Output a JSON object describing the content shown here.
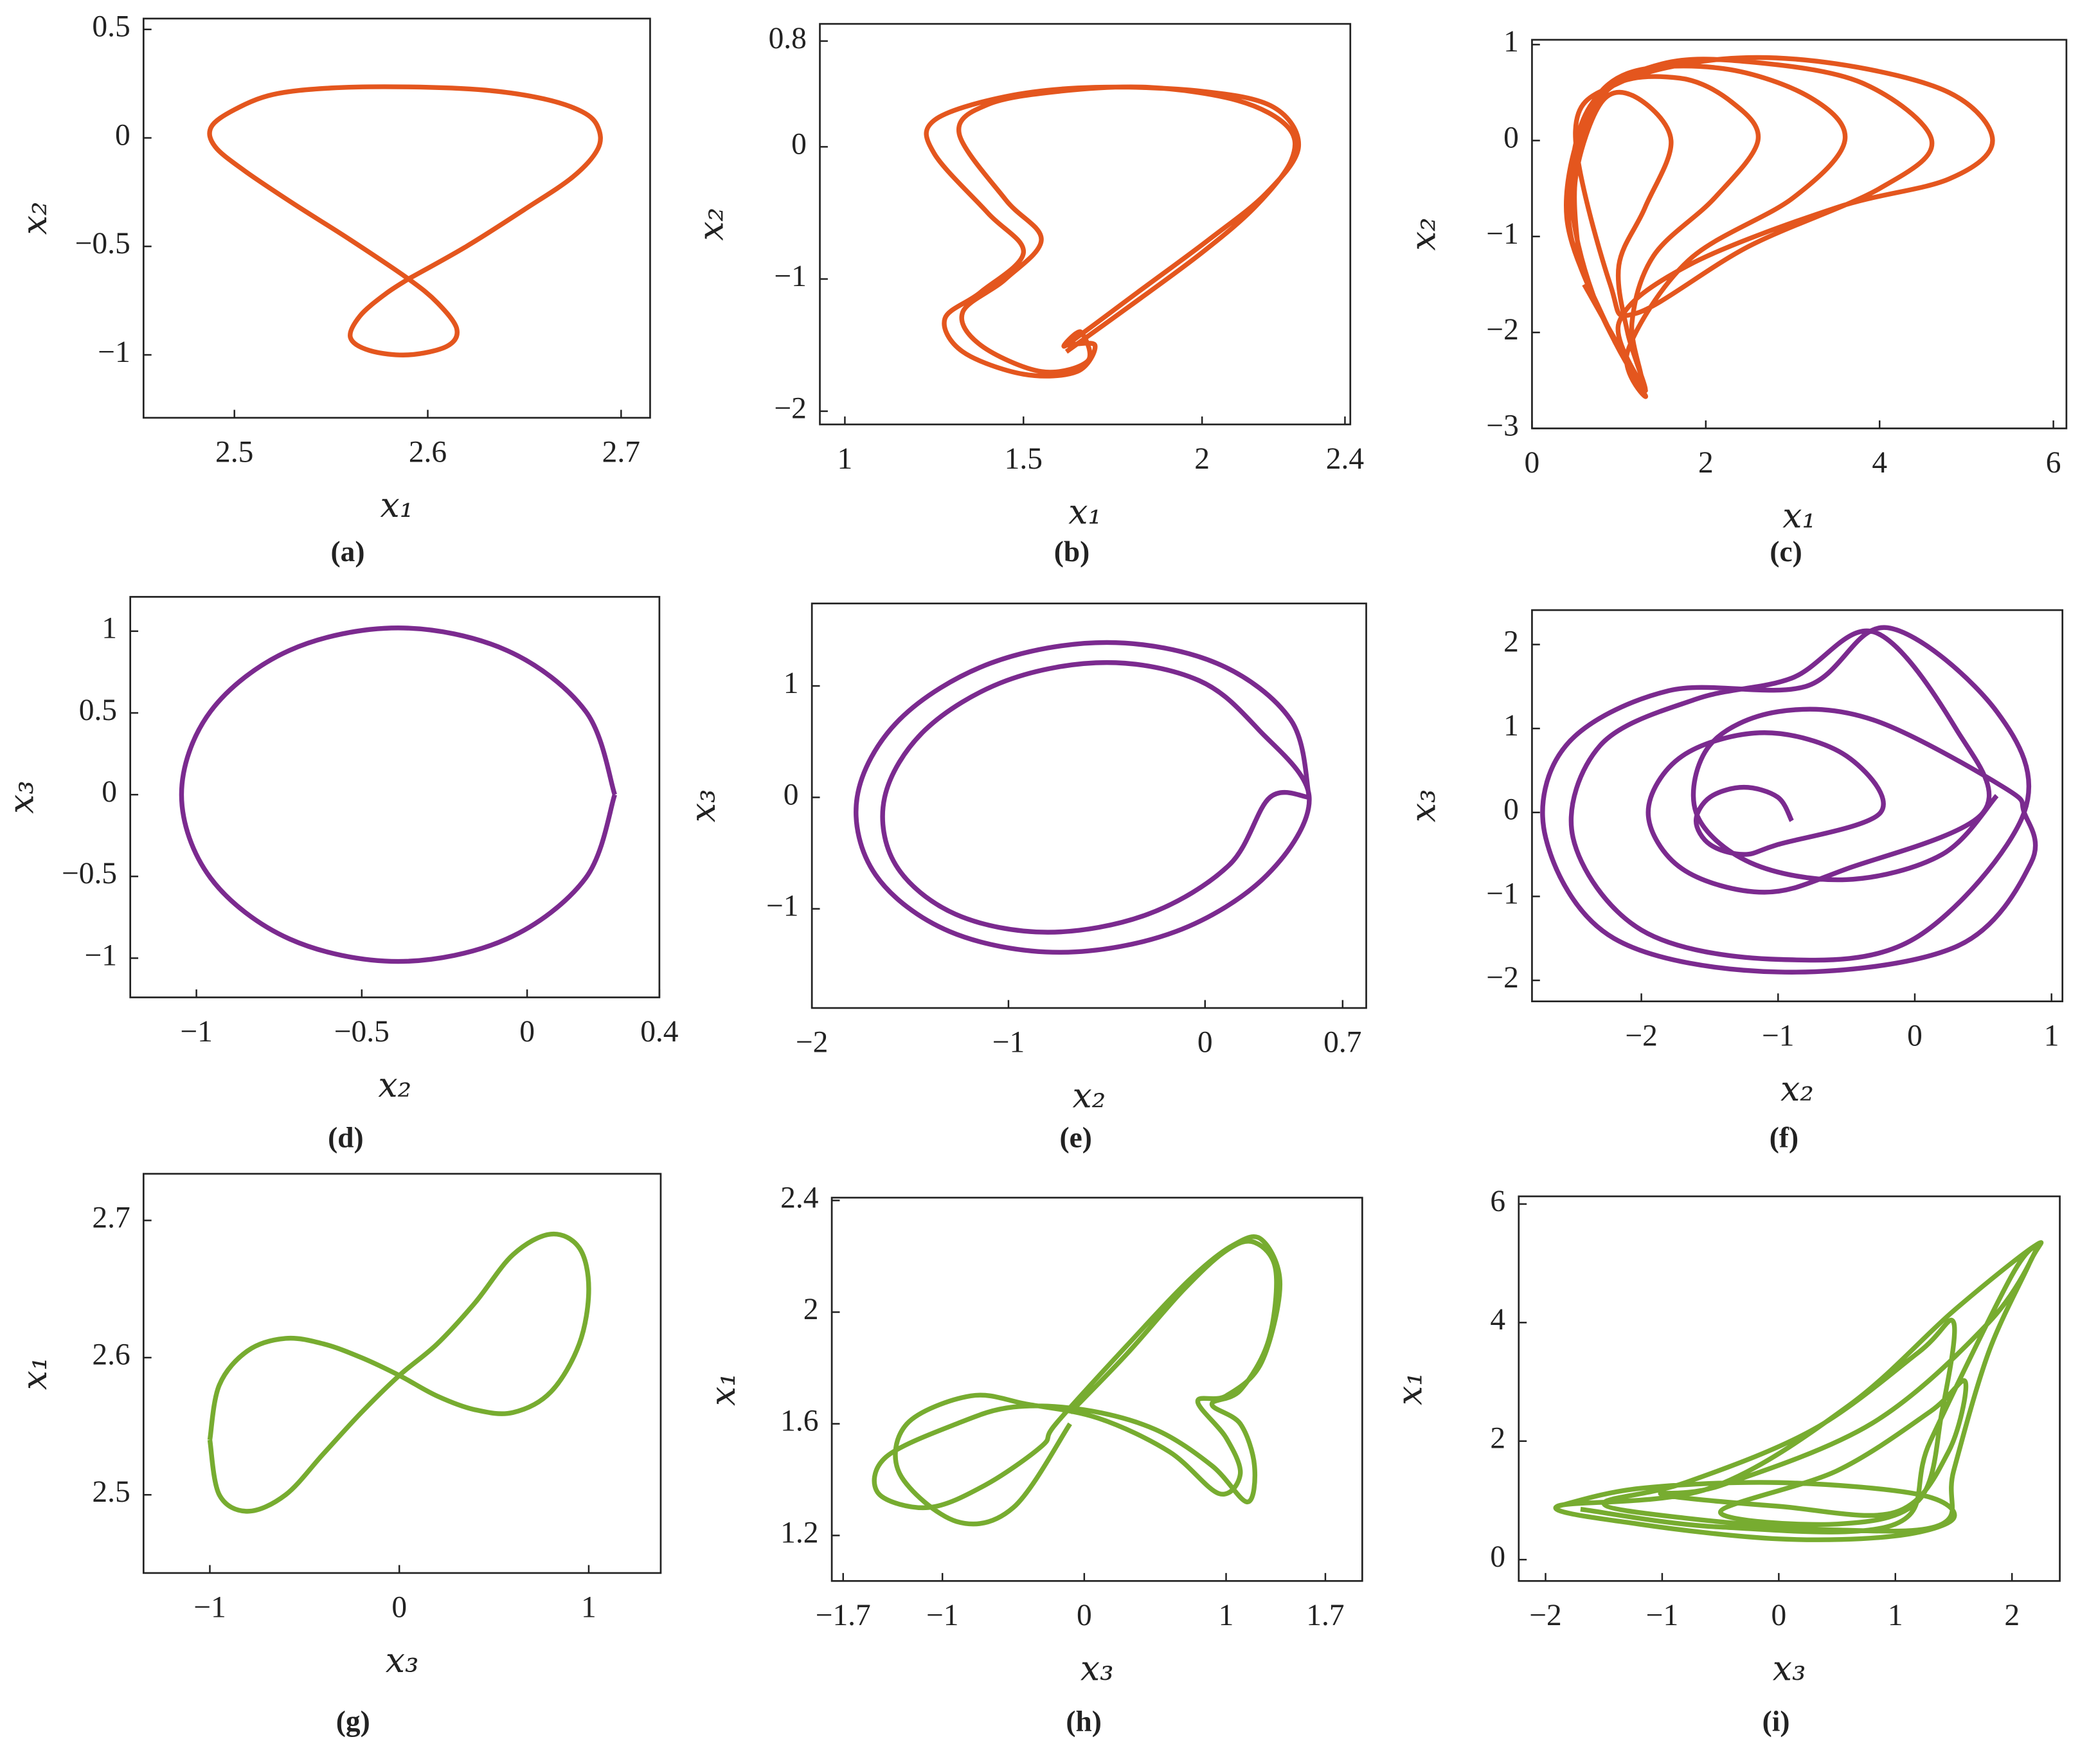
{
  "chart_data": [
    {
      "type": "line",
      "caption": "(a)",
      "xlabel": "x₁",
      "ylabel": "x₂",
      "color": "#e4561e",
      "xlim": [
        2.453,
        2.715
      ],
      "ylim": [
        -1.29,
        0.55
      ],
      "xticks": [
        2.5,
        2.6,
        2.7
      ],
      "yticks": [
        {
          "value": -1,
          "label": "−1"
        },
        {
          "value": -0.5,
          "label": "−0.5"
        },
        0,
        0.5
      ],
      "x": [
        2.59,
        2.62,
        2.65,
        2.675,
        2.688,
        2.688,
        2.68,
        2.66,
        2.63,
        2.59,
        2.55,
        2.52,
        2.5,
        2.488,
        2.49,
        2.505,
        2.53,
        2.56,
        2.59,
        2.605,
        2.615,
        2.61,
        2.59,
        2.57,
        2.56,
        2.565,
        2.578,
        2.59
      ],
      "values": [
        -0.65,
        -0.5,
        -0.33,
        -0.18,
        -0.05,
        0.05,
        0.12,
        0.18,
        0.22,
        0.235,
        0.23,
        0.2,
        0.13,
        0.05,
        -0.04,
        -0.15,
        -0.3,
        -0.47,
        -0.65,
        -0.76,
        -0.88,
        -0.96,
        -1.0,
        -0.98,
        -0.92,
        -0.82,
        -0.72,
        -0.65
      ]
    },
    {
      "type": "line",
      "caption": "(b)",
      "xlabel": "x₁",
      "ylabel": "x₂",
      "color": "#e4561e",
      "xlim": [
        0.93,
        2.415
      ],
      "ylim": [
        -2.1,
        0.93
      ],
      "xticks": [
        1,
        1.5,
        2,
        2.4
      ],
      "yticks": [
        {
          "value": -2,
          "label": "−2"
        },
        {
          "value": -1,
          "label": "−1"
        },
        0,
        0.8
      ],
      "x": [
        1.62,
        1.8,
        2.0,
        2.15,
        2.25,
        2.24,
        2.1,
        1.85,
        1.6,
        1.4,
        1.32,
        1.45,
        1.55,
        1.45,
        1.33,
        1.38,
        1.55,
        1.68,
        1.66,
        1.62,
        1.82,
        2.02,
        2.18,
        2.27,
        2.2,
        2.0,
        1.7,
        1.45,
        1.25,
        1.25,
        1.4,
        1.5,
        1.38,
        1.28,
        1.33,
        1.5,
        1.65,
        1.7,
        1.62
      ],
      "values": [
        -1.55,
        -1.2,
        -0.8,
        -0.45,
        -0.1,
        0.15,
        0.35,
        0.45,
        0.42,
        0.32,
        0.1,
        -0.4,
        -0.7,
        -1.0,
        -1.25,
        -1.5,
        -1.7,
        -1.62,
        -1.4,
        -1.5,
        -1.1,
        -0.7,
        -0.35,
        0,
        0.3,
        0.42,
        0.45,
        0.38,
        0.2,
        -0.05,
        -0.5,
        -0.8,
        -1.1,
        -1.3,
        -1.55,
        -1.72,
        -1.7,
        -1.5,
        -1.5
      ]
    },
    {
      "type": "line",
      "caption": "(c)",
      "xlabel": "x₁",
      "ylabel": "x₂",
      "color": "#e4561e",
      "xlim": [
        0,
        6.15
      ],
      "ylim": [
        -3,
        1.05
      ],
      "xticks": [
        0,
        2,
        4,
        6
      ],
      "yticks": [
        {
          "value": -3,
          "label": "−3"
        },
        {
          "value": -2,
          "label": "−2"
        },
        {
          "value": -1,
          "label": "−1"
        },
        0,
        1
      ],
      "x": [
        0.55,
        0.5,
        0.8,
        1.2,
        1.6,
        1.3,
        1.0,
        1.1,
        1.3,
        0.9,
        0.45,
        0.5,
        0.9,
        1.7,
        2.3,
        2.6,
        2.1,
        1.4,
        1.15,
        1.25,
        0.8,
        0.4,
        0.6,
        1.1,
        2.2,
        3.2,
        3.6,
        3.0,
        1.8,
        1.1,
        1.3,
        0.7,
        0.45,
        0.7,
        1.5,
        2.5,
        3.8,
        4.6,
        4.0,
        2.5,
        1.2,
        0.9,
        0.5,
        1.0,
        2.2,
        3.5,
        4.8,
        5.3,
        4.8,
        3.5,
        1.8,
        1.0,
        1.3,
        0.6
      ],
      "values": [
        -1.3,
        -0.4,
        0.4,
        0.45,
        0,
        -0.7,
        -1.3,
        -2.0,
        -2.6,
        -2.0,
        -1.0,
        -0.2,
        0.55,
        0.65,
        0.4,
        0,
        -0.6,
        -1.2,
        -1.9,
        -2.5,
        -1.8,
        -0.8,
        0.2,
        0.7,
        0.75,
        0.45,
        0,
        -0.6,
        -1.25,
        -2.2,
        -2.65,
        -1.6,
        -0.5,
        0.4,
        0.8,
        0.82,
        0.6,
        0,
        -0.5,
        -1.1,
        -1.8,
        -1.5,
        0.1,
        0.6,
        0.85,
        0.8,
        0.5,
        0,
        -0.4,
        -0.7,
        -1.3,
        -1.9,
        -2.6,
        -1.5
      ]
    },
    {
      "type": "line",
      "caption": "(d)",
      "xlabel": "x₂",
      "ylabel": "x₃",
      "color": "#7b2a8f",
      "xlim": [
        -1.2,
        0.4
      ],
      "ylim": [
        -1.24,
        1.21
      ],
      "xticks": [
        {
          "value": -1,
          "label": "−1"
        },
        {
          "value": -0.5,
          "label": "−0.5"
        },
        0,
        0.4
      ],
      "yticks": [
        {
          "value": -1,
          "label": "−1"
        },
        {
          "value": -0.5,
          "label": "−0.5"
        },
        0,
        0.5,
        1
      ],
      "x": [
        0.265,
        0.177,
        -0.062,
        -0.39,
        -0.718,
        -0.957,
        -1.045,
        -0.957,
        -0.718,
        -0.39,
        -0.062,
        0.177,
        0.265
      ],
      "values": [
        0,
        0.51,
        0.883,
        1.02,
        0.883,
        0.51,
        0,
        -0.51,
        -0.883,
        -1.02,
        -0.883,
        -0.51,
        0
      ]
    },
    {
      "type": "line",
      "caption": "(e)",
      "xlabel": "x₂",
      "ylabel": "x₃",
      "color": "#7b2a8f",
      "xlim": [
        -2,
        0.82
      ],
      "ylim": [
        -1.89,
        1.74
      ],
      "xticks": [
        {
          "value": -2,
          "label": "−2"
        },
        {
          "value": -1,
          "label": "−1"
        },
        0,
        0.7
      ],
      "yticks": [
        {
          "value": -1,
          "label": "−1"
        },
        0,
        1
      ],
      "x": [
        0.53,
        0.436,
        0.059,
        -0.5,
        -1.091,
        -1.556,
        -1.77,
        -1.676,
        -1.299,
        -0.74,
        -0.149,
        0.316,
        0.53,
        0.274,
        -0.03,
        -0.5,
        -1.01,
        -1.424,
        -1.63,
        -1.574,
        -1.27,
        -0.8,
        -0.29,
        0.124,
        0.33,
        0.53
      ],
      "values": [
        0,
        0.695,
        1.204,
        1.39,
        1.204,
        0.695,
        0,
        -0.695,
        -1.204,
        -1.39,
        -1.204,
        -0.695,
        0,
        0.605,
        1.048,
        1.21,
        1.048,
        0.605,
        0,
        -0.605,
        -1.048,
        -1.21,
        -1.048,
        -0.605,
        0,
        0
      ]
    },
    {
      "type": "line",
      "caption": "(f)",
      "xlabel": "x₂",
      "ylabel": "x₃",
      "color": "#7b2a8f",
      "xlim": [
        -2.8,
        1.08
      ],
      "ylim": [
        -2.25,
        2.41
      ],
      "xticks": [
        {
          "value": -2,
          "label": "−2"
        },
        {
          "value": -1,
          "label": "−1"
        },
        0,
        1
      ],
      "yticks": [
        {
          "value": -2,
          "label": "−2"
        },
        {
          "value": -1,
          "label": "−1"
        },
        0,
        1,
        2
      ],
      "x": [
        -0.9,
        -1.003,
        -1.25,
        -1.497,
        -1.6,
        -1.497,
        -1.25,
        -1.003,
        -0.25,
        -0.499,
        -1.1,
        -1.701,
        -1.95,
        -1.701,
        -1.1,
        -0.499,
        0.5,
        0.3,
        -0.3,
        -0.9,
        -1.6,
        -2.3,
        -2.5,
        -2.0,
        -1.0,
        0,
        0.8,
        0.6,
        -0.2,
        -0.8,
        -1.8,
        -2.55,
        -2.7,
        -2.2,
        -1.0,
        0.3,
        0.85,
        0.8,
        0.65,
        -0.3,
        -1.0,
        -1.5,
        -1.6,
        -1.2,
        -0.5,
        0.2,
        0.6
      ],
      "values": [
        -0.1,
        0.183,
        0.3,
        0.183,
        -0.1,
        -0.383,
        -0.5,
        -0.383,
        0,
        0.672,
        0.95,
        0.672,
        0,
        -0.672,
        -0.95,
        -0.672,
        0,
        1.0,
        2.15,
        1.6,
        1.35,
        0.8,
        -0.3,
        -1.4,
        -1.75,
        -1.5,
        0,
        1.2,
        2.2,
        1.5,
        1.45,
        0.8,
        -0.3,
        -1.5,
        -1.9,
        -1.6,
        -0.6,
        0,
        0.3,
        1.1,
        1.2,
        0.8,
        0,
        -0.6,
        -0.8,
        -0.5,
        0.2
      ]
    },
    {
      "type": "line",
      "caption": "(g)",
      "xlabel": "x₃",
      "ylabel": "x₁",
      "color": "#77ac30",
      "xlim": [
        -1.35,
        1.38
      ],
      "ylim": [
        2.443,
        2.734
      ],
      "xticks": [
        {
          "value": -1,
          "label": "−1"
        },
        0,
        1
      ],
      "yticks": [
        2.5,
        2.6,
        2.7
      ],
      "x": [
        -1,
        -0.95,
        -0.8,
        -0.6,
        -0.4,
        -0.2,
        0,
        0.2,
        0.4,
        0.6,
        0.8,
        0.95,
        1.0,
        0.95,
        0.8,
        0.6,
        0.4,
        0.2,
        0,
        -0.2,
        -0.4,
        -0.6,
        -0.8,
        -0.95,
        -1
      ],
      "values": [
        2.54,
        2.58,
        2.605,
        2.614,
        2.61,
        2.6,
        2.587,
        2.572,
        2.562,
        2.56,
        2.575,
        2.61,
        2.65,
        2.68,
        2.69,
        2.675,
        2.64,
        2.61,
        2.587,
        2.56,
        2.53,
        2.5,
        2.488,
        2.5,
        2.54
      ]
    },
    {
      "type": "line",
      "caption": "(h)",
      "xlabel": "x₃",
      "ylabel": "x₁",
      "color": "#77ac30",
      "xlim": [
        -1.78,
        1.96
      ],
      "ylim": [
        1.037,
        2.41
      ],
      "xticks": [
        {
          "value": -1.7,
          "label": "−1.7"
        },
        {
          "value": -1,
          "label": "−1"
        },
        0,
        1,
        1.7
      ],
      "yticks": [
        1.2,
        1.6,
        2,
        2.4
      ],
      "x": [
        -0.1,
        0.3,
        0.7,
        1.0,
        1.2,
        1.35,
        1.3,
        1.1,
        0.9,
        1.1,
        1.2,
        1.15,
        0.9,
        0.5,
        0,
        -0.5,
        -0.9,
        -1.4,
        -1.45,
        -1.1,
        -0.7,
        -0.3,
        -0.2,
        0.3,
        0.75,
        1.05,
        1.25,
        1.38,
        1.25,
        1.0,
        0.8,
        1.0,
        1.1,
        0.95,
        0.6,
        0.1,
        -0.4,
        -0.8,
        -1.25,
        -1.3,
        -0.9,
        -0.5,
        -0.1
      ],
      "values": [
        1.64,
        1.85,
        2.08,
        2.22,
        2.25,
        2.15,
        1.9,
        1.72,
        1.67,
        1.6,
        1.45,
        1.32,
        1.45,
        1.58,
        1.65,
        1.66,
        1.6,
        1.48,
        1.35,
        1.3,
        1.38,
        1.52,
        1.6,
        1.88,
        2.12,
        2.24,
        2.26,
        2.1,
        1.82,
        1.7,
        1.68,
        1.55,
        1.42,
        1.35,
        1.5,
        1.62,
        1.67,
        1.7,
        1.6,
        1.42,
        1.25,
        1.3,
        1.6
      ]
    },
    {
      "type": "line",
      "caption": "(i)",
      "xlabel": "x₃",
      "ylabel": "x₁",
      "color": "#77ac30",
      "xlim": [
        -2.23,
        2.41
      ],
      "ylim": [
        -0.36,
        6.13
      ],
      "xticks": [
        {
          "value": -2,
          "label": "−2"
        },
        {
          "value": -1,
          "label": "−1"
        },
        0,
        1,
        2
      ],
      "yticks": [
        0,
        2,
        4,
        6
      ],
      "x": [
        -1.9,
        -1.2,
        0,
        1.2,
        1.5,
        1.0,
        0,
        -1.2,
        -1.9,
        -0.6,
        0.6,
        1.5,
        2.2,
        2.15,
        1.8,
        1.5,
        1.4,
        0.5,
        -0.8,
        -1.5,
        -0.8,
        0.3,
        1.2,
        1.5,
        1.4,
        1.2,
        0.5,
        -0.5,
        0.5,
        1.3,
        1.6,
        1.45,
        1.0,
        0,
        -1.0,
        -0.5,
        0.8,
        1.8,
        2.2,
        2.0,
        1.3,
        1.0,
        -0.5,
        -1.7
      ],
      "values": [
        0.9,
        1.2,
        1.3,
        1.1,
        0.7,
        0.4,
        0.35,
        0.6,
        0.9,
        1.2,
        2.6,
        4.2,
        5.3,
        5.0,
        3.5,
        1.5,
        0.6,
        0.5,
        0.7,
        0.95,
        1.3,
        2.2,
        3.5,
        4.0,
        2.5,
        1.0,
        0.6,
        0.8,
        1.5,
        2.5,
        3.0,
        1.8,
        0.8,
        0.9,
        1.1,
        1.25,
        2.3,
        4.0,
        5.2,
        4.8,
        2.0,
        0.6,
        0.55,
        0.85
      ]
    }
  ]
}
